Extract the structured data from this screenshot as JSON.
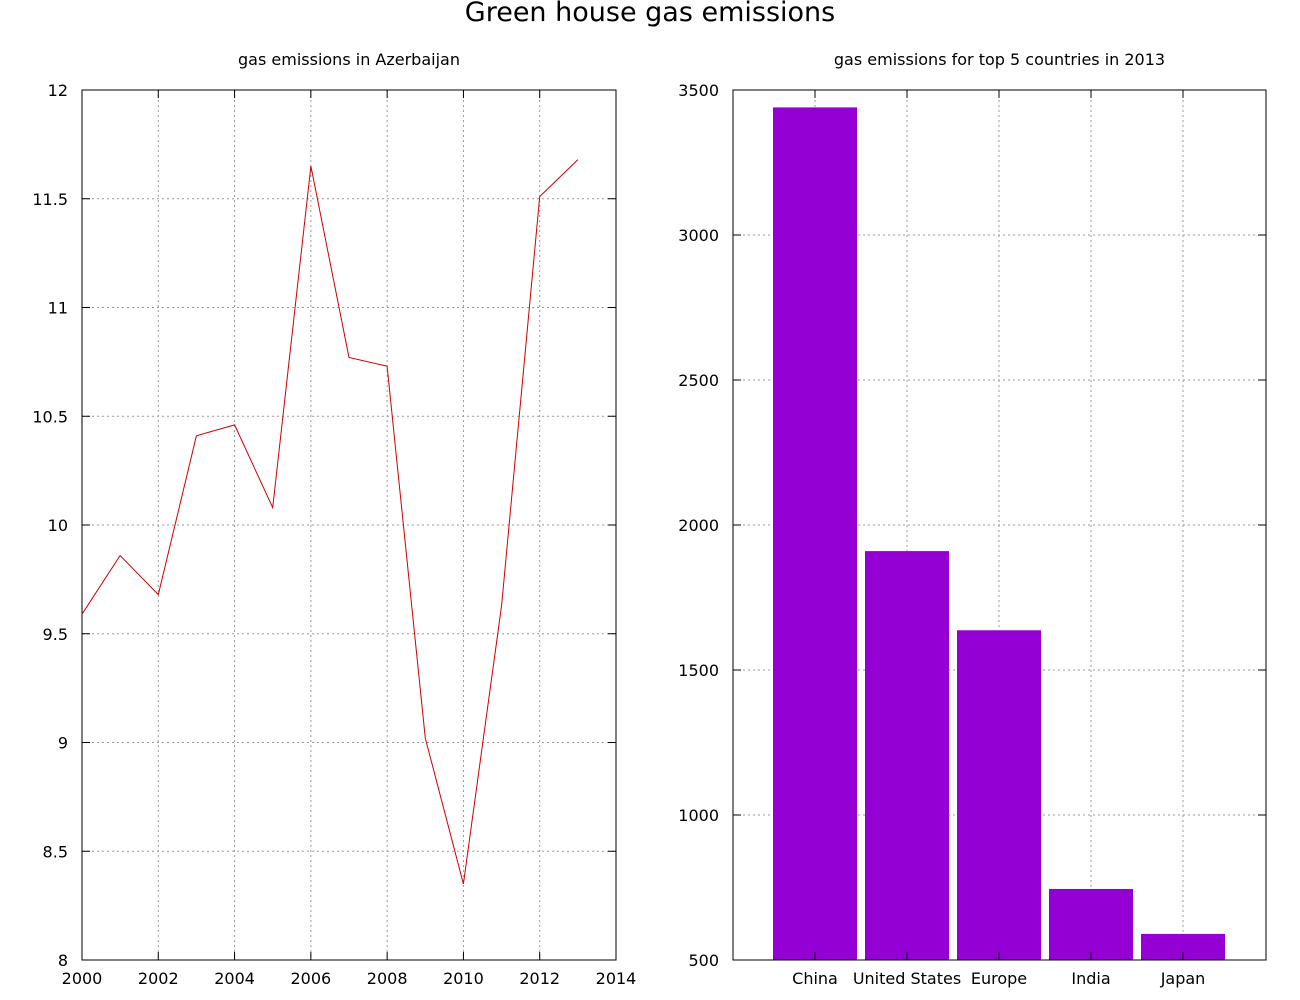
{
  "figure": {
    "title": "Green house gas emissions"
  },
  "chart_data": [
    {
      "type": "line",
      "title": "gas emissions in Azerbaijan",
      "xlabel": "",
      "ylabel": "",
      "xlim": [
        2000,
        2014
      ],
      "ylim": [
        8,
        12
      ],
      "xticks": [
        "2000",
        "2002",
        "2004",
        "2006",
        "2008",
        "2010",
        "2012",
        "2014"
      ],
      "yticks": [
        "8",
        "8.5",
        "9",
        "9.5",
        "10",
        "10.5",
        "11",
        "11.5",
        "12"
      ],
      "grid": true,
      "x": [
        2000,
        2001,
        2002,
        2003,
        2004,
        2005,
        2006,
        2007,
        2008,
        2009,
        2010,
        2011,
        2012,
        2013
      ],
      "series": [
        {
          "values": [
            9.59,
            9.86,
            9.68,
            10.41,
            10.46,
            10.08,
            11.65,
            10.77,
            10.73,
            9.02,
            8.35,
            9.63,
            11.51,
            11.68
          ],
          "color": "#cc0000"
        }
      ]
    },
    {
      "type": "bar",
      "title": "gas emissions for top 5 countries in 2013",
      "xlabel": "",
      "ylabel": "",
      "ylim": [
        500,
        3500
      ],
      "yticks": [
        "500",
        "1000",
        "1500",
        "2000",
        "2500",
        "3000",
        "3500"
      ],
      "grid": true,
      "categories": [
        "China",
        "United States",
        "Europe",
        "India",
        "Japan"
      ],
      "values": [
        3440,
        1910,
        1637,
        745,
        590
      ],
      "color": "#9400d3"
    }
  ]
}
